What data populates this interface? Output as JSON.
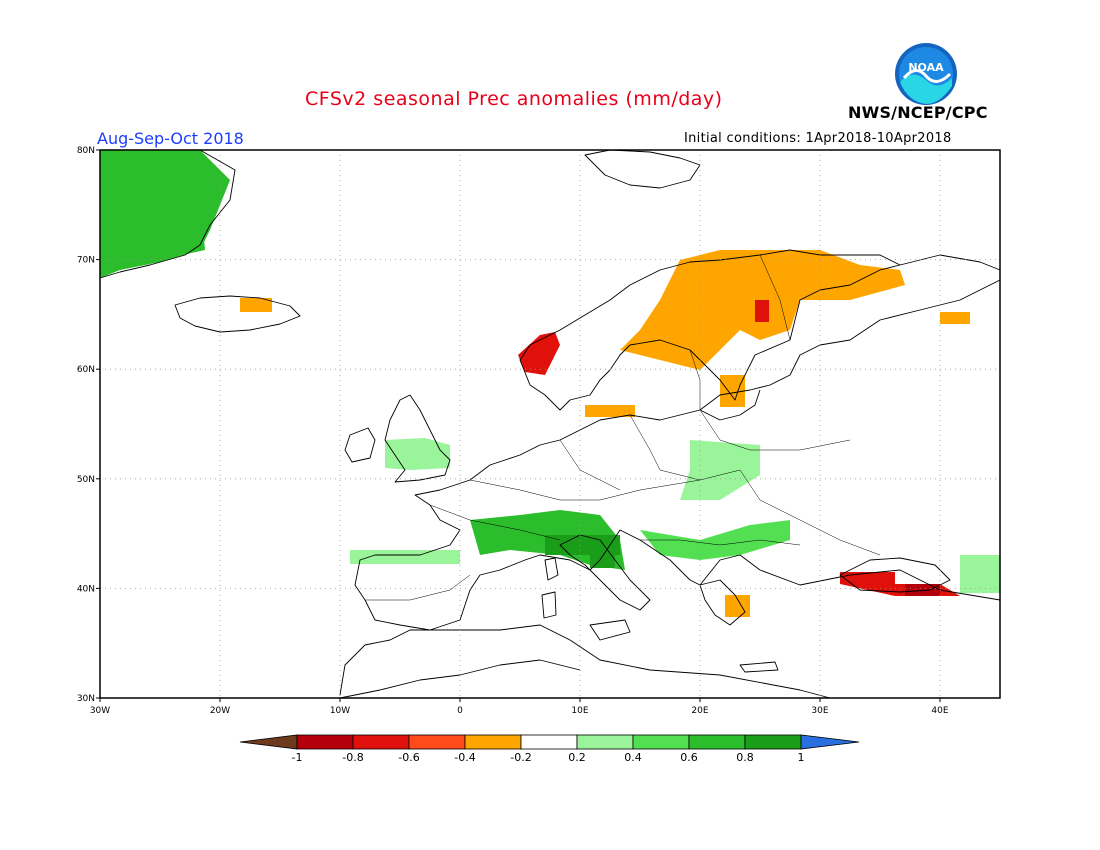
{
  "header": {
    "title": "CFSv2 seasonal Prec anomalies (mm/day)",
    "valid_period": "Aug-Sep-Oct 2018",
    "initial_conditions": "Initial conditions: 1Apr2018-10Apr2018",
    "agency": "NWS/NCEP/CPC",
    "logo_text": "NOAA"
  },
  "map": {
    "lon_range": [
      -30,
      45
    ],
    "lat_range": [
      30,
      80
    ],
    "lon_ticks": [
      "30W",
      "20W",
      "10W",
      "0",
      "10E",
      "20E",
      "30E",
      "40E"
    ],
    "lat_ticks": [
      "30N",
      "40N",
      "50N",
      "60N",
      "70N",
      "80N"
    ],
    "grid": "dotted"
  },
  "colorbar": {
    "labels": [
      "-1",
      "-0.8",
      "-0.6",
      "-0.4",
      "-0.2",
      "0.2",
      "0.4",
      "0.6",
      "0.8",
      "1"
    ],
    "colors": [
      "#6e3a1e",
      "#b4000a",
      "#e0110a",
      "#ff4a1a",
      "#ffa500",
      "#ffffff",
      "#9af59a",
      "#52e052",
      "#2bbd2b",
      "#1a9e1a",
      "#2a6fe0"
    ]
  },
  "anomaly_regions": [
    {
      "name": "greenland",
      "level": "0.6"
    },
    {
      "name": "scandinavia",
      "level": "-0.4"
    },
    {
      "name": "western-norway",
      "level": "-0.6"
    },
    {
      "name": "iceland",
      "level": "-0.4"
    },
    {
      "name": "british-isles",
      "level": "0.2"
    },
    {
      "name": "alps-italy",
      "level": "0.6"
    },
    {
      "name": "central-europe",
      "level": "0.2"
    },
    {
      "name": "balkans",
      "level": "0.4"
    },
    {
      "name": "turkey",
      "level": "-0.6"
    }
  ]
}
